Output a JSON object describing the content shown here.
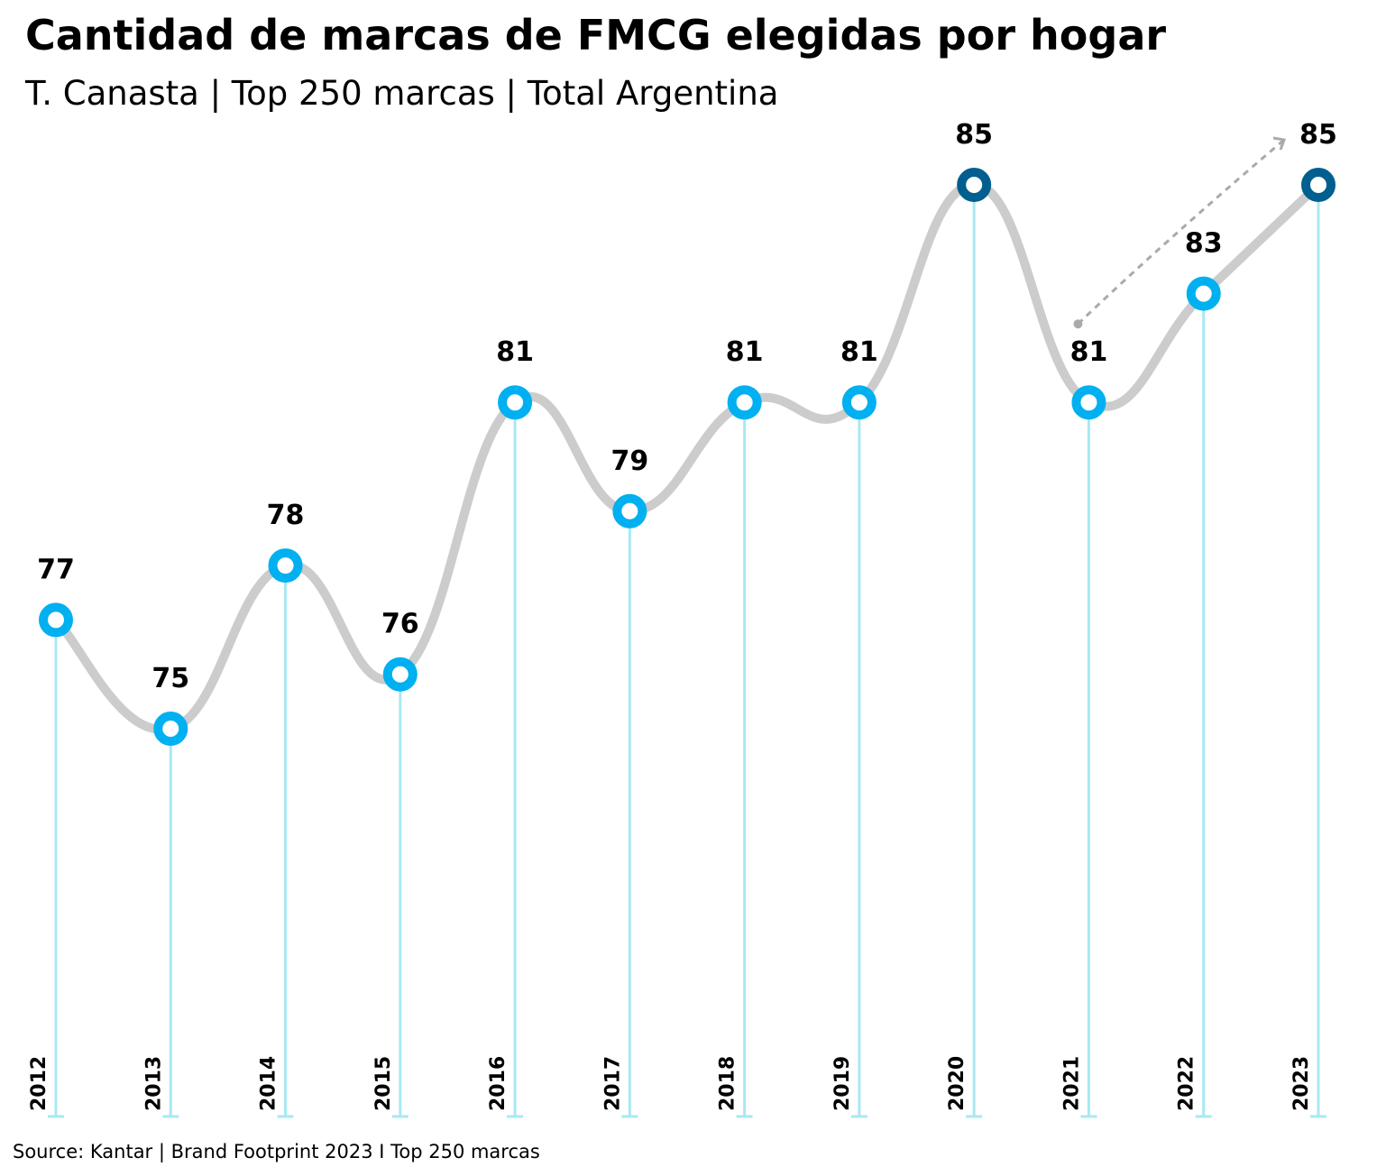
{
  "title": "Cantidad de marcas de FMCG elegidas por hogar",
  "subtitle": "T. Canasta | Top 250 marcas | Total Argentina",
  "source": "Source: Kantar | Brand Footprint 2023 I Top 250 marcas",
  "colors": {
    "line": "#cccccc",
    "marker": "#00b0f0",
    "marker_highlight": "#005f8f",
    "stem": "#a8e8f5",
    "trend_arrow": "#aaaaaa"
  },
  "chart_data": {
    "type": "line",
    "title": "Cantidad de marcas de FMCG elegidas por hogar",
    "xlabel": "",
    "ylabel": "",
    "grid": false,
    "categories": [
      "2012",
      "2013",
      "2014",
      "2015",
      "2016",
      "2017",
      "2018",
      "2019",
      "2020",
      "2021",
      "2022",
      "2023"
    ],
    "values": [
      77,
      75,
      78,
      76,
      81,
      79,
      81,
      81,
      85,
      81,
      83,
      85
    ],
    "highlighted": [
      "2020",
      "2023"
    ],
    "trend_arrow": {
      "from": "2021",
      "to": "2023",
      "style": "dashed"
    }
  }
}
